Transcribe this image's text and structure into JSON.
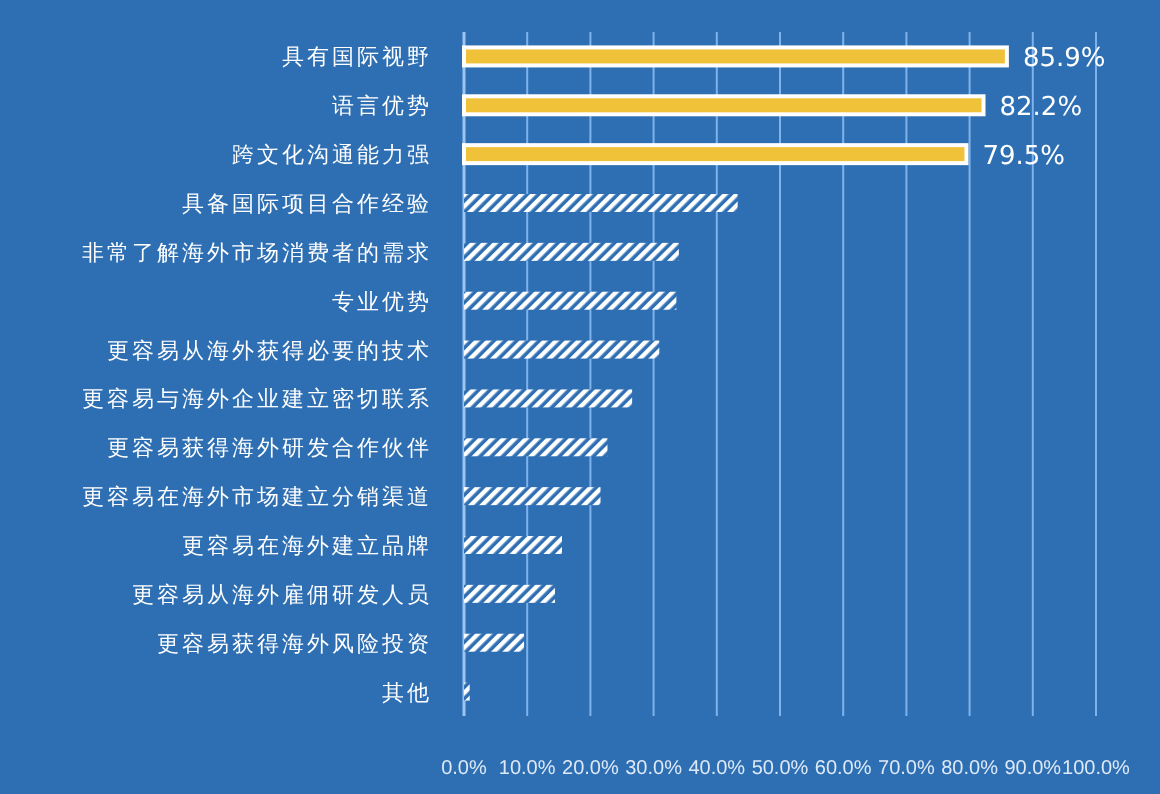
{
  "chart_data": {
    "type": "bar",
    "orientation": "horizontal",
    "categories": [
      "具有国际视野",
      "语言优势",
      "跨文化沟通能力强",
      "具备国际项目合作经验",
      "非常了解海外市场消费者的需求",
      "专业优势",
      "更容易从海外获得必要的技术",
      "更容易与海外企业建立密切联系",
      "更容易获得海外研发合作伙伴",
      "更容易在海外市场建立分销渠道",
      "更容易在海外建立品牌",
      "更容易从海外雇佣研发人员",
      "更容易获得海外风险投资",
      "其他"
    ],
    "values": [
      85.9,
      82.2,
      79.5,
      43.3,
      34.0,
      33.6,
      30.9,
      26.6,
      22.7,
      21.6,
      15.5,
      14.4,
      9.5,
      0.9
    ],
    "colors": [
      "#f0c23a",
      "#f0c23a",
      "#f0c23a",
      "#ffffff",
      "#ffffff",
      "#ffffff",
      "#ffffff",
      "#ffffff",
      "#ffffff",
      "#ffffff",
      "#ffffff",
      "#ffffff",
      "#ffffff",
      "#ffffff"
    ],
    "value_labels": [
      "85.9%",
      "82.2%",
      "79.5%",
      null,
      null,
      null,
      null,
      null,
      null,
      null,
      null,
      null,
      null,
      null
    ],
    "xlim": [
      0,
      100
    ],
    "xticks": [
      {
        "value": 0,
        "label": "0.0%"
      },
      {
        "value": 10,
        "label": "10.0%"
      },
      {
        "value": 20,
        "label": "20.0%"
      },
      {
        "value": 30,
        "label": "30.0%"
      },
      {
        "value": 40,
        "label": "40.0%"
      },
      {
        "value": 50,
        "label": "50.0%"
      },
      {
        "value": 60,
        "label": "60.0%"
      },
      {
        "value": 70,
        "label": "70.0%"
      },
      {
        "value": 80,
        "label": "80.0%"
      },
      {
        "value": 90,
        "label": "90.0%"
      },
      {
        "value": 100,
        "label": "100.0%"
      }
    ],
    "grid": "x"
  }
}
